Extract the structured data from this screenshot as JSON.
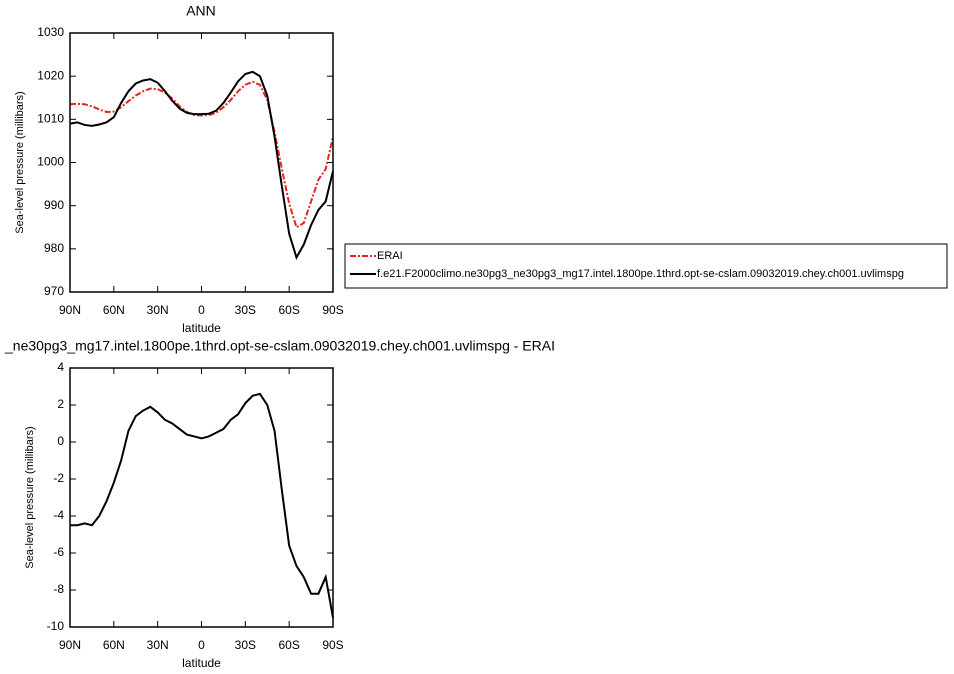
{
  "chart_data": [
    {
      "type": "line",
      "title": "ANN",
      "xlabel": "latitude",
      "ylabel": "Sea-level pressure (millibars)",
      "x": [
        90,
        85,
        80,
        75,
        70,
        65,
        60,
        55,
        50,
        45,
        40,
        35,
        30,
        25,
        20,
        15,
        10,
        5,
        0,
        -5,
        -10,
        -15,
        -20,
        -25,
        -30,
        -35,
        -40,
        -45,
        -50,
        -55,
        -60,
        -65,
        -70,
        -75,
        -80,
        -85,
        -90
      ],
      "xlim": [
        90,
        -90
      ],
      "xticks": [
        {
          "value": 90,
          "label": "90N"
        },
        {
          "value": 60,
          "label": "60N"
        },
        {
          "value": 30,
          "label": "30N"
        },
        0,
        {
          "value": -30,
          "label": "30S"
        },
        {
          "value": -60,
          "label": "60S"
        },
        {
          "value": -90,
          "label": "90S"
        }
      ],
      "ylim": [
        970,
        1030
      ],
      "yticks": [
        970,
        980,
        990,
        1000,
        1010,
        1020,
        1030
      ],
      "series": [
        {
          "name": "ERAI",
          "color": "#e8231f",
          "linestyle": "dashed",
          "values": [
            1013.5,
            1013.6,
            1013.5,
            1013,
            1012.3,
            1011.7,
            1011.8,
            1012.8,
            1014.2,
            1015.5,
            1016.5,
            1017.1,
            1017,
            1016.2,
            1014.8,
            1013,
            1011.7,
            1011,
            1010.9,
            1011,
            1011.5,
            1012.8,
            1014.5,
            1016.5,
            1018,
            1018.7,
            1018,
            1014.5,
            1007,
            998.5,
            990.5,
            985,
            986,
            991,
            996,
            998.5,
            1006
          ]
        },
        {
          "name": "f.e21.F2000climo.ne30pg3_ne30pg3_mg17.intel.1800pe.1thrd.opt-se-cslam.09032019.chey.ch001.uvlimspg",
          "color": "#000000",
          "linestyle": "solid",
          "values": [
            1009,
            1009.3,
            1008.7,
            1008.5,
            1008.8,
            1009.3,
            1010.5,
            1013.8,
            1016.5,
            1018.3,
            1019,
            1019.3,
            1018.5,
            1016.5,
            1014.3,
            1012.5,
            1011.5,
            1011.2,
            1011.2,
            1011.3,
            1012,
            1013.8,
            1016.2,
            1018.8,
            1020.5,
            1021,
            1020,
            1015.5,
            1006,
            994.5,
            983.5,
            978,
            981,
            985.5,
            989,
            991,
            998
          ]
        }
      ]
    },
    {
      "type": "line",
      "title": "_ne30pg3_mg17.intel.1800pe.1thrd.opt-se-cslam.09032019.chey.ch001.uvlimspg - ERAI",
      "xlabel": "latitude",
      "ylabel": "Sea-level pressure (millibars)",
      "x": [
        90,
        85,
        80,
        75,
        70,
        65,
        60,
        55,
        50,
        45,
        40,
        35,
        30,
        25,
        20,
        15,
        10,
        5,
        0,
        -5,
        -10,
        -15,
        -20,
        -25,
        -30,
        -35,
        -40,
        -45,
        -50,
        -55,
        -60,
        -65,
        -70,
        -75,
        -80,
        -85,
        -90
      ],
      "xlim": [
        90,
        -90
      ],
      "xticks": [
        {
          "value": 90,
          "label": "90N"
        },
        {
          "value": 60,
          "label": "60N"
        },
        {
          "value": 30,
          "label": "30N"
        },
        0,
        {
          "value": -30,
          "label": "30S"
        },
        {
          "value": -60,
          "label": "60S"
        },
        {
          "value": -90,
          "label": "90S"
        }
      ],
      "ylim": [
        -10,
        4
      ],
      "yticks": [
        -10,
        -8,
        -6,
        -4,
        -2,
        0,
        2,
        4
      ],
      "series": [
        {
          "color": "#000000",
          "linestyle": "solid",
          "values": [
            -4.5,
            -4.5,
            -4.4,
            -4.5,
            -4.0,
            -3.2,
            -2.2,
            -1.0,
            0.6,
            1.4,
            1.7,
            1.9,
            1.6,
            1.2,
            1.0,
            0.7,
            0.4,
            0.3,
            0.2,
            0.3,
            0.5,
            0.7,
            1.2,
            1.5,
            2.1,
            2.5,
            2.6,
            2.0,
            0.6,
            -2.6,
            -5.6,
            -6.7,
            -7.3,
            -8.2,
            -8.2,
            -7.3,
            -9.5
          ]
        }
      ]
    }
  ]
}
